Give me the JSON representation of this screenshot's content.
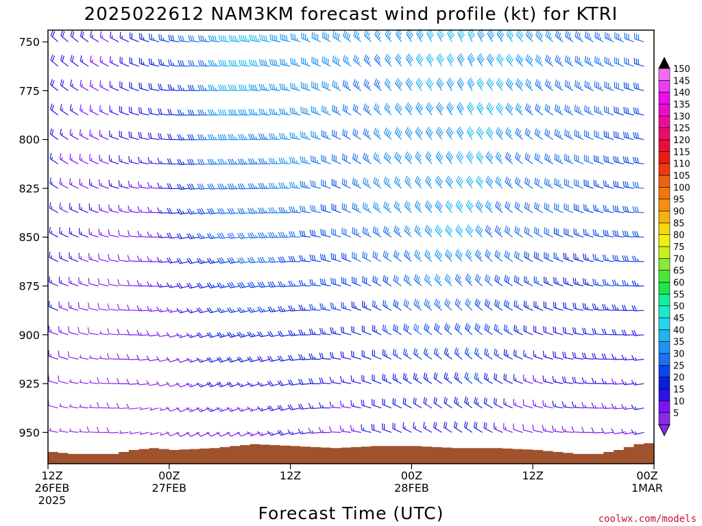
{
  "title": "2025022612 NAM3KM forecast wind profile (kt) for KTRI",
  "credit": "coolwx.com/models",
  "chart_data": {
    "type": "wind-barb-time-height",
    "title": "2025022612 NAM3KM forecast wind profile (kt) for KTRI",
    "xlabel": "Forecast Time (UTC)",
    "ylabel": "",
    "y_ticks": [
      750,
      775,
      800,
      825,
      850,
      875,
      900,
      925,
      950
    ],
    "ylim": [
      744,
      966
    ],
    "y_direction": "pressure decreasing upward",
    "x_range_hours": [
      0,
      60
    ],
    "x_ticks": [
      {
        "hour": 0,
        "line1": "12Z",
        "line2": "26FEB",
        "line3": "2025"
      },
      {
        "hour": 12,
        "line1": "00Z",
        "line2": "27FEB",
        "line3": ""
      },
      {
        "hour": 24,
        "line1": "12Z",
        "line2": "",
        "line3": ""
      },
      {
        "hour": 36,
        "line1": "00Z",
        "line2": "28FEB",
        "line3": ""
      },
      {
        "hour": 48,
        "line1": "12Z",
        "line2": "",
        "line3": ""
      },
      {
        "hour": 60,
        "line1": "00Z",
        "line2": "1MAR",
        "line3": ""
      }
    ],
    "pressure_levels": [
      750,
      762.5,
      775,
      787.5,
      800,
      812.5,
      825,
      837.5,
      850,
      862.5,
      875,
      887.5,
      900,
      912.5,
      925,
      937.5,
      950
    ],
    "times_hours": [
      0,
      1,
      2,
      3,
      4,
      5,
      6,
      7,
      8,
      9,
      10,
      11,
      12,
      13,
      14,
      15,
      16,
      17,
      18,
      19,
      20,
      21,
      22,
      23,
      24,
      25,
      26,
      27,
      28,
      29,
      30,
      31,
      32,
      33,
      34,
      35,
      36,
      37,
      38,
      39,
      40,
      41,
      42,
      43,
      44,
      45,
      46,
      47,
      48,
      49,
      50,
      51,
      52,
      53,
      54,
      55,
      56,
      57,
      58,
      59,
      60
    ],
    "wind_model": {
      "description": "Approximate wind speed (kt) and direction (deg, from) by forecast hour and pressure level",
      "speed_keyframes_850": [
        [
          0,
          18
        ],
        [
          6,
          12
        ],
        [
          12,
          15
        ],
        [
          18,
          32
        ],
        [
          24,
          32
        ],
        [
          30,
          30
        ],
        [
          36,
          38
        ],
        [
          42,
          40
        ],
        [
          48,
          30
        ],
        [
          54,
          28
        ],
        [
          60,
          28
        ]
      ],
      "speed_keyframes_750": [
        [
          0,
          18
        ],
        [
          6,
          16
        ],
        [
          12,
          25
        ],
        [
          18,
          42
        ],
        [
          24,
          40
        ],
        [
          30,
          36
        ],
        [
          36,
          38
        ],
        [
          42,
          42
        ],
        [
          48,
          38
        ],
        [
          54,
          34
        ],
        [
          60,
          30
        ]
      ],
      "speed_keyframes_950": [
        [
          0,
          8
        ],
        [
          6,
          6
        ],
        [
          12,
          8
        ],
        [
          18,
          12
        ],
        [
          24,
          16
        ],
        [
          30,
          14
        ],
        [
          36,
          18
        ],
        [
          42,
          20
        ],
        [
          48,
          12
        ],
        [
          54,
          12
        ],
        [
          60,
          14
        ]
      ],
      "direction_keyframes": [
        [
          0,
          300
        ],
        [
          8,
          280
        ],
        [
          14,
          260
        ],
        [
          20,
          262
        ],
        [
          24,
          268
        ],
        [
          30,
          292
        ],
        [
          36,
          312
        ],
        [
          42,
          320
        ],
        [
          48,
          300
        ],
        [
          54,
          285
        ],
        [
          60,
          270
        ]
      ]
    },
    "colorbar": {
      "labels": [
        5,
        10,
        15,
        20,
        25,
        30,
        35,
        40,
        45,
        50,
        55,
        60,
        65,
        70,
        75,
        80,
        85,
        90,
        95,
        100,
        105,
        110,
        115,
        120,
        125,
        130,
        135,
        140,
        145,
        150
      ],
      "colors": [
        "#8a2be2",
        "#7b12f6",
        "#2b12e6",
        "#0a1fdc",
        "#0a46ec",
        "#1e70f0",
        "#1c93f2",
        "#1eb6ee",
        "#22d6e8",
        "#18ecd0",
        "#12ee9a",
        "#18e84a",
        "#4ae838",
        "#8ae838",
        "#c8f01e",
        "#f0f012",
        "#f4d80e",
        "#f4b40e",
        "#f4900c",
        "#f0780a",
        "#ec6212",
        "#ec3a12",
        "#ec1c12",
        "#ec0c3a",
        "#ec0c6e",
        "#ec0c9a",
        "#ec0cc8",
        "#ec0cec",
        "#ec3cf2",
        "#f46cf4"
      ]
    },
    "terrain": {
      "color": "#a0522d",
      "surface_pressure_keyframes": [
        [
          0,
          960
        ],
        [
          2,
          961
        ],
        [
          6,
          961
        ],
        [
          8,
          959
        ],
        [
          10,
          958
        ],
        [
          12,
          959
        ],
        [
          16,
          958
        ],
        [
          20,
          956
        ],
        [
          24,
          957
        ],
        [
          28,
          958
        ],
        [
          32,
          957
        ],
        [
          36,
          957
        ],
        [
          40,
          958
        ],
        [
          44,
          958
        ],
        [
          48,
          959
        ],
        [
          52,
          961
        ],
        [
          54,
          961
        ],
        [
          56,
          959
        ],
        [
          58,
          956
        ],
        [
          60,
          955
        ]
      ]
    }
  }
}
